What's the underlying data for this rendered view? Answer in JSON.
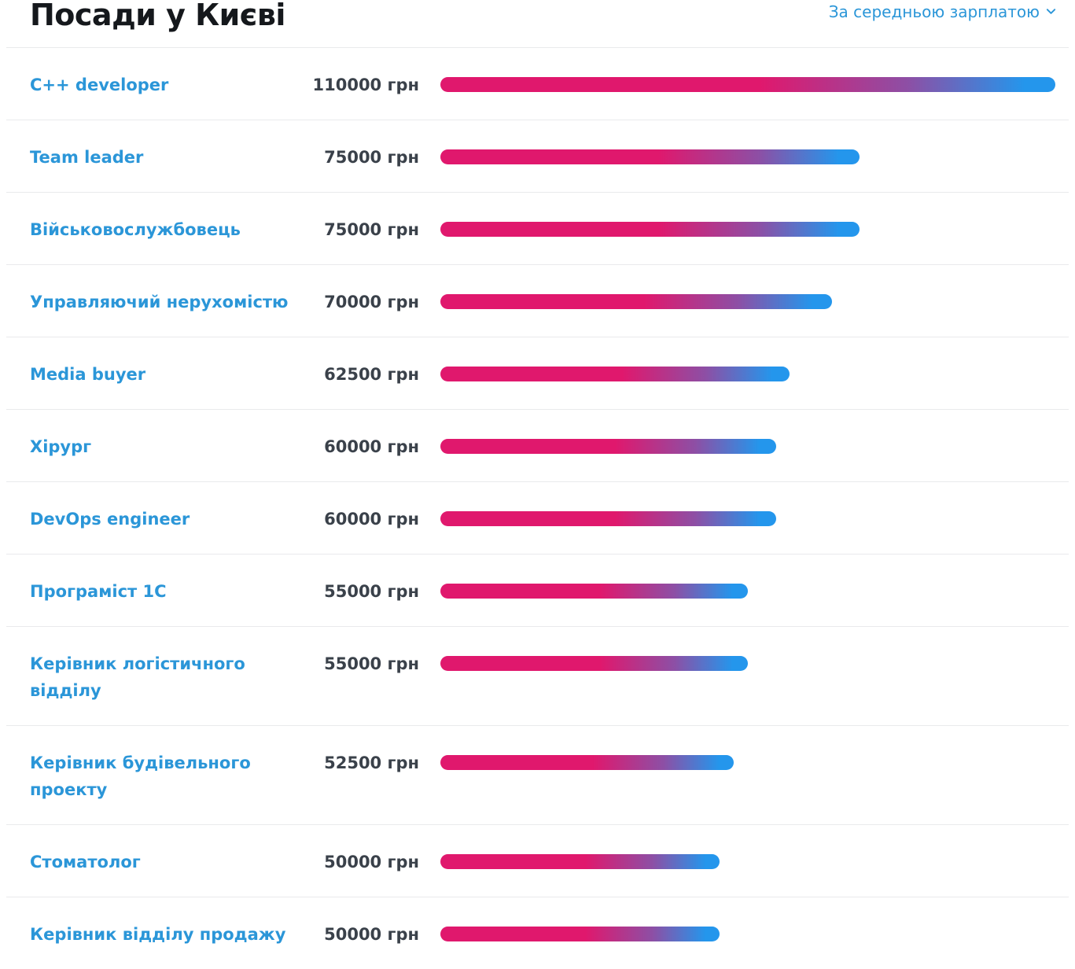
{
  "header": {
    "title": "Посади у Києві",
    "sort_label": "За середньою зарплатою"
  },
  "chart_data": {
    "type": "bar",
    "orientation": "horizontal",
    "title": "Посади у Києві",
    "sort_order": "За середньою зарплатою",
    "unit": "грн",
    "max_value": 110000,
    "categories": [
      "C++ developer",
      "Team leader",
      "Військовослужбовець",
      "Управляючий нерухомістю",
      "Media buyer",
      "Хірург",
      "DevOps engineer",
      "Програміст 1С",
      "Керівник логістичного відділу",
      "Керівник будівельного проекту",
      "Стоматолог",
      "Керівник відділу продажу"
    ],
    "values": [
      110000,
      75000,
      75000,
      70000,
      62500,
      60000,
      60000,
      55000,
      55000,
      52500,
      50000,
      50000
    ],
    "colors": {
      "bar_start": "#e0186d",
      "bar_mid": "#8d4fa5",
      "bar_end": "#2496ec",
      "link_blue": "#2b96d8",
      "value_text": "#3a414a",
      "separator": "#e9eaec"
    },
    "legend": "none",
    "grid": "off"
  },
  "rows": [
    {
      "label": "C++ developer",
      "salary": "110000 грн"
    },
    {
      "label": "Team leader",
      "salary": "75000 грн"
    },
    {
      "label": "Військовослужбовець",
      "salary": "75000 грн"
    },
    {
      "label": "Управляючий нерухомістю",
      "salary": "70000 грн"
    },
    {
      "label": "Media buyer",
      "salary": "62500 грн"
    },
    {
      "label": "Хірург",
      "salary": "60000 грн"
    },
    {
      "label": "DevOps engineer",
      "salary": "60000 грн"
    },
    {
      "label": "Програміст 1С",
      "salary": "55000 грн"
    },
    {
      "label": "Керівник логістичного\nвідділу",
      "salary": "55000 грн"
    },
    {
      "label": "Керівник будівельного\nпроекту",
      "salary": "52500 грн"
    },
    {
      "label": "Стоматолог",
      "salary": "50000 грн"
    },
    {
      "label": "Керівник відділу продажу",
      "salary": "50000 грн"
    }
  ]
}
